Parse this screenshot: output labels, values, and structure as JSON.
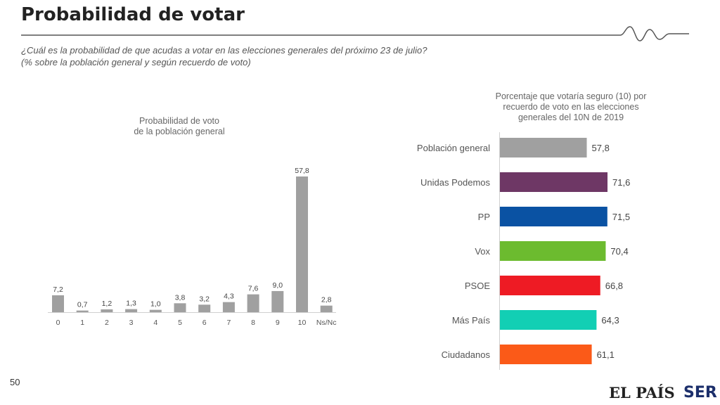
{
  "header": {
    "title": "Probabilidad de votar",
    "subtitle_line1": "¿Cuál es la probabilidad de que acudas a votar en las elecciones generales del próximo 23 de julio?",
    "subtitle_line2": "(% sobre la población general y según recuerdo de voto)"
  },
  "footer": {
    "page_number": "50",
    "logo_left": "EL PAÍS",
    "logo_right": "SER"
  },
  "chart_data": [
    {
      "type": "bar",
      "title_lines": [
        "Probabilidad de voto",
        "de la población general"
      ],
      "categories": [
        "0",
        "1",
        "2",
        "3",
        "4",
        "5",
        "6",
        "7",
        "8",
        "9",
        "10",
        "Ns/Nc"
      ],
      "values": [
        7.2,
        0.7,
        1.2,
        1.3,
        1.0,
        3.8,
        3.2,
        4.3,
        7.6,
        9.0,
        57.8,
        2.8
      ],
      "value_labels": [
        "7,2",
        "0,7",
        "1,2",
        "1,3",
        "1,0",
        "3,8",
        "3,2",
        "4,3",
        "7,6",
        "9,0",
        "57,8",
        "2,8"
      ],
      "color": "#a0a0a0",
      "ylim": [
        0,
        57.8
      ]
    },
    {
      "type": "bar",
      "orientation": "horizontal",
      "title_lines": [
        "Porcentaje que votaría seguro (10) por",
        "recuerdo de voto en las elecciones",
        "generales del 10N de 2019"
      ],
      "categories": [
        "Población general",
        "Unidas Podemos",
        "PP",
        "Vox",
        "PSOE",
        "Más País",
        "Ciudadanos"
      ],
      "values": [
        57.8,
        71.6,
        71.5,
        70.4,
        66.8,
        64.3,
        61.1
      ],
      "value_labels": [
        "57,8",
        "71,6",
        "71,5",
        "70,4",
        "66,8",
        "64,3",
        "61,1"
      ],
      "colors": [
        "#a0a0a0",
        "#6e3765",
        "#0a52a3",
        "#6cbb2f",
        "#ee1b24",
        "#12cfb4",
        "#fb5a18"
      ],
      "xlim": [
        0,
        71.6
      ]
    }
  ]
}
